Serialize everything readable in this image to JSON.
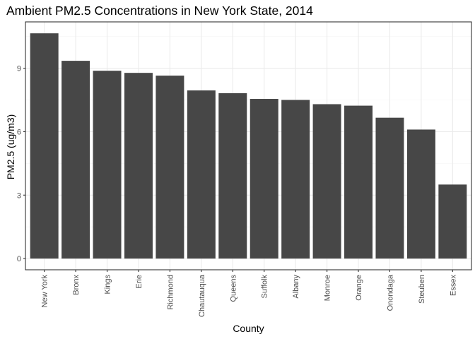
{
  "chart_data": {
    "type": "bar",
    "title": "Ambient PM2.5 Concentrations in New York State, 2014",
    "xlabel": "County",
    "ylabel": "PM2.5 (ug/m3)",
    "categories": [
      "New York",
      "Bronx",
      "Kings",
      "Erie",
      "Richmond",
      "Chautauqua",
      "Queens",
      "Suffolk",
      "Albany",
      "Monroe",
      "Orange",
      "Onondaga",
      "Steuben",
      "Essex"
    ],
    "values": [
      10.65,
      9.35,
      8.88,
      8.78,
      8.65,
      7.95,
      7.82,
      7.55,
      7.5,
      7.3,
      7.23,
      6.66,
      6.1,
      3.5
    ],
    "yticks": [
      0,
      3,
      6,
      9
    ],
    "ylim": [
      -0.53,
      11.19
    ],
    "grid": true,
    "colors": {
      "bar": "#474747",
      "panel_border": "#333333",
      "grid_major": "#ebebeb",
      "grid_minor": "#f5f5f5"
    }
  }
}
